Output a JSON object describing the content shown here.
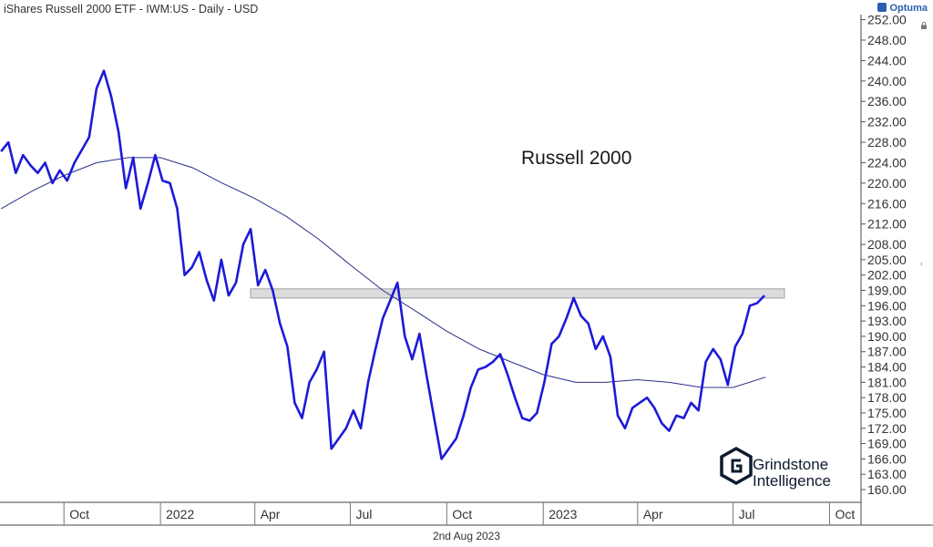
{
  "header": {
    "title": "iShares Russell 2000 ETF - IWM:US - Daily - USD",
    "brand": "Optuma"
  },
  "footer": {
    "date": "2nd Aug 2023"
  },
  "annotation": "Russell 2000",
  "logo": {
    "line1": "Grindstone",
    "line2": "Intelligence"
  },
  "colors": {
    "price": "#1d1ad8",
    "ma": "#2a2f8a",
    "band_fill": "#dcdcdc",
    "band_stroke": "#a0a0a0"
  },
  "icons": {
    "lock": "lock-icon",
    "collapse": "chevron-left-icon"
  },
  "chart_data": {
    "type": "line",
    "title": "Russell 2000",
    "x_labels": [
      "Oct",
      "2022",
      "Apr",
      "Jul",
      "Oct",
      "2023",
      "Apr",
      "Jul",
      "Oct"
    ],
    "x_label_dates": [
      "2021-10-01",
      "2022-01-01",
      "2022-04-01",
      "2022-07-01",
      "2022-10-01",
      "2023-01-01",
      "2023-04-01",
      "2023-07-01",
      "2023-10-01"
    ],
    "xlim": [
      "2021-08-01",
      "2023-10-31"
    ],
    "ylim": [
      157.5,
      253
    ],
    "y_ticks": [
      "252.00",
      "248.00",
      "244.00",
      "240.00",
      "236.00",
      "232.00",
      "228.00",
      "224.00",
      "220.00",
      "216.00",
      "212.00",
      "208.00",
      "205.00",
      "202.00",
      "199.00",
      "196.00",
      "193.00",
      "190.00",
      "187.00",
      "184.00",
      "181.00",
      "178.00",
      "175.00",
      "172.00",
      "169.00",
      "166.00",
      "163.00",
      "160.00"
    ],
    "resistance_band": [
      197.5,
      199.3
    ],
    "series": [
      {
        "points": [
          [
            "2021-08-02",
            226.2
          ],
          [
            "2021-08-09",
            228.0
          ],
          [
            "2021-08-16",
            222.0
          ],
          [
            "2021-08-23",
            225.5
          ],
          [
            "2021-08-30",
            223.5
          ],
          [
            "2021-09-06",
            222.0
          ],
          [
            "2021-09-13",
            224.0
          ],
          [
            "2021-09-20",
            220.0
          ],
          [
            "2021-09-27",
            222.5
          ],
          [
            "2021-10-04",
            220.5
          ],
          [
            "2021-10-11",
            224.0
          ],
          [
            "2021-10-18",
            226.5
          ],
          [
            "2021-10-25",
            229.0
          ],
          [
            "2021-11-01",
            238.5
          ],
          [
            "2021-11-08",
            242.0
          ],
          [
            "2021-11-15",
            237.0
          ],
          [
            "2021-11-22",
            230.0
          ],
          [
            "2021-11-29",
            219.0
          ],
          [
            "2021-12-06",
            225.0
          ],
          [
            "2021-12-13",
            215.0
          ],
          [
            "2021-12-20",
            220.0
          ],
          [
            "2021-12-27",
            225.5
          ],
          [
            "2022-01-03",
            220.5
          ],
          [
            "2022-01-10",
            220.0
          ],
          [
            "2022-01-17",
            215.0
          ],
          [
            "2022-01-24",
            202.0
          ],
          [
            "2022-01-31",
            203.5
          ],
          [
            "2022-02-07",
            206.5
          ],
          [
            "2022-02-14",
            201.0
          ],
          [
            "2022-02-21",
            197.0
          ],
          [
            "2022-02-28",
            205.0
          ],
          [
            "2022-03-07",
            198.0
          ],
          [
            "2022-03-14",
            200.5
          ],
          [
            "2022-03-21",
            208.0
          ],
          [
            "2022-03-28",
            211.0
          ],
          [
            "2022-04-04",
            200.0
          ],
          [
            "2022-04-11",
            203.0
          ],
          [
            "2022-04-18",
            199.0
          ],
          [
            "2022-04-25",
            192.5
          ],
          [
            "2022-05-02",
            188.0
          ],
          [
            "2022-05-09",
            177.0
          ],
          [
            "2022-05-16",
            174.0
          ],
          [
            "2022-05-23",
            181.0
          ],
          [
            "2022-05-30",
            183.5
          ],
          [
            "2022-06-06",
            187.0
          ],
          [
            "2022-06-13",
            168.0
          ],
          [
            "2022-06-20",
            170.0
          ],
          [
            "2022-06-27",
            172.0
          ],
          [
            "2022-07-04",
            175.5
          ],
          [
            "2022-07-11",
            172.0
          ],
          [
            "2022-07-18",
            181.0
          ],
          [
            "2022-07-25",
            187.5
          ],
          [
            "2022-08-01",
            193.5
          ],
          [
            "2022-08-08",
            197.0
          ],
          [
            "2022-08-15",
            200.5
          ],
          [
            "2022-08-22",
            190.0
          ],
          [
            "2022-08-29",
            185.5
          ],
          [
            "2022-09-05",
            190.5
          ],
          [
            "2022-09-12",
            182.0
          ],
          [
            "2022-09-19",
            174.0
          ],
          [
            "2022-09-26",
            166.0
          ],
          [
            "2022-10-03",
            168.0
          ],
          [
            "2022-10-10",
            170.0
          ],
          [
            "2022-10-17",
            174.5
          ],
          [
            "2022-10-24",
            180.0
          ],
          [
            "2022-10-31",
            183.5
          ],
          [
            "2022-11-07",
            184.0
          ],
          [
            "2022-11-14",
            185.0
          ],
          [
            "2022-11-21",
            186.5
          ],
          [
            "2022-11-28",
            182.5
          ],
          [
            "2022-12-05",
            178.0
          ],
          [
            "2022-12-12",
            174.0
          ],
          [
            "2022-12-19",
            173.5
          ],
          [
            "2022-12-26",
            175.0
          ],
          [
            "2023-01-02",
            181.0
          ],
          [
            "2023-01-09",
            188.5
          ],
          [
            "2023-01-16",
            190.0
          ],
          [
            "2023-01-23",
            193.5
          ],
          [
            "2023-01-30",
            197.5
          ],
          [
            "2023-02-06",
            194.0
          ],
          [
            "2023-02-13",
            192.5
          ],
          [
            "2023-02-20",
            187.5
          ],
          [
            "2023-02-27",
            190.0
          ],
          [
            "2023-03-06",
            186.0
          ],
          [
            "2023-03-13",
            174.5
          ],
          [
            "2023-03-20",
            172.0
          ],
          [
            "2023-03-27",
            176.0
          ],
          [
            "2023-04-03",
            177.0
          ],
          [
            "2023-04-10",
            178.0
          ],
          [
            "2023-04-17",
            176.0
          ],
          [
            "2023-04-24",
            173.0
          ],
          [
            "2023-05-01",
            171.5
          ],
          [
            "2023-05-08",
            174.5
          ],
          [
            "2023-05-15",
            174.0
          ],
          [
            "2023-05-22",
            177.0
          ],
          [
            "2023-05-29",
            175.5
          ],
          [
            "2023-06-05",
            185.0
          ],
          [
            "2023-06-12",
            187.5
          ],
          [
            "2023-06-19",
            185.5
          ],
          [
            "2023-06-26",
            180.5
          ],
          [
            "2023-07-03",
            188.0
          ],
          [
            "2023-07-10",
            190.5
          ],
          [
            "2023-07-17",
            196.0
          ],
          [
            "2023-07-24",
            196.5
          ],
          [
            "2023-07-31",
            198.0
          ]
        ]
      },
      {
        "points": [
          [
            "2021-08-02",
            215.0
          ],
          [
            "2021-09-01",
            218.5
          ],
          [
            "2021-10-01",
            221.5
          ],
          [
            "2021-11-01",
            224.0
          ],
          [
            "2021-12-01",
            225.0
          ],
          [
            "2022-01-01",
            225.0
          ],
          [
            "2022-02-01",
            223.0
          ],
          [
            "2022-03-01",
            220.0
          ],
          [
            "2022-04-01",
            217.0
          ],
          [
            "2022-05-01",
            213.5
          ],
          [
            "2022-06-01",
            209.0
          ],
          [
            "2022-07-01",
            204.0
          ],
          [
            "2022-08-01",
            199.0
          ],
          [
            "2022-09-01",
            195.0
          ],
          [
            "2022-10-01",
            191.0
          ],
          [
            "2022-11-01",
            187.5
          ],
          [
            "2022-12-01",
            185.0
          ],
          [
            "2023-01-01",
            182.5
          ],
          [
            "2023-02-01",
            181.0
          ],
          [
            "2023-03-01",
            181.0
          ],
          [
            "2023-04-01",
            181.5
          ],
          [
            "2023-05-01",
            181.0
          ],
          [
            "2023-06-01",
            180.0
          ],
          [
            "2023-07-01",
            180.0
          ],
          [
            "2023-08-01",
            182.0
          ]
        ]
      }
    ]
  }
}
